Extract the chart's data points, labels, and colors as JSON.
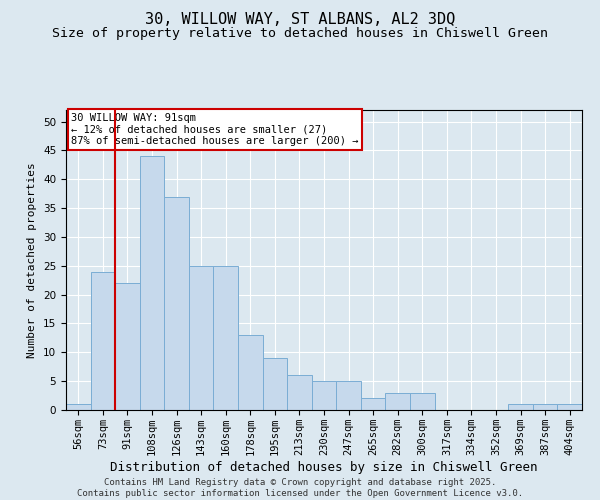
{
  "title": "30, WILLOW WAY, ST ALBANS, AL2 3DQ",
  "subtitle": "Size of property relative to detached houses in Chiswell Green",
  "xlabel": "Distribution of detached houses by size in Chiswell Green",
  "ylabel": "Number of detached properties",
  "categories": [
    "56sqm",
    "73sqm",
    "91sqm",
    "108sqm",
    "126sqm",
    "143sqm",
    "160sqm",
    "178sqm",
    "195sqm",
    "213sqm",
    "230sqm",
    "247sqm",
    "265sqm",
    "282sqm",
    "300sqm",
    "317sqm",
    "334sqm",
    "352sqm",
    "369sqm",
    "387sqm",
    "404sqm"
  ],
  "values": [
    1,
    24,
    22,
    44,
    37,
    25,
    25,
    13,
    9,
    6,
    5,
    5,
    2,
    3,
    3,
    0,
    0,
    0,
    1,
    1,
    1
  ],
  "bar_color": "#c6d9ec",
  "bar_edge_color": "#7aadd4",
  "vline_color": "#cc0000",
  "vline_x_index": 2,
  "annotation_text": "30 WILLOW WAY: 91sqm\n← 12% of detached houses are smaller (27)\n87% of semi-detached houses are larger (200) →",
  "annotation_box_facecolor": "#ffffff",
  "annotation_box_edgecolor": "#cc0000",
  "ylim": [
    0,
    52
  ],
  "yticks": [
    0,
    5,
    10,
    15,
    20,
    25,
    30,
    35,
    40,
    45,
    50
  ],
  "background_color": "#dce8f0",
  "plot_background_color": "#dce8f0",
  "grid_color": "#ffffff",
  "footer_text": "Contains HM Land Registry data © Crown copyright and database right 2025.\nContains public sector information licensed under the Open Government Licence v3.0.",
  "title_fontsize": 11,
  "subtitle_fontsize": 9.5,
  "ylabel_fontsize": 8,
  "xlabel_fontsize": 9,
  "tick_fontsize": 7.5,
  "annotation_fontsize": 7.5,
  "footer_fontsize": 6.5
}
